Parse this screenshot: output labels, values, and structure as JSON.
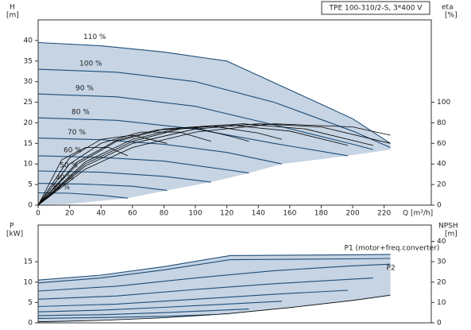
{
  "chart_data": [
    {
      "type": "line",
      "title": "TPE 100-310/2-S, 3*400 V",
      "y_label": "H",
      "y_unit": "[m]",
      "y2_label": "eta",
      "y2_unit": "[%]",
      "x_label": "Q [m³/h]",
      "xlim": [
        0,
        250
      ],
      "xticks": [
        0,
        20,
        40,
        60,
        80,
        100,
        120,
        140,
        160,
        180,
        200,
        220
      ],
      "ylim": [
        0,
        45
      ],
      "yticks": [
        0,
        5,
        10,
        15,
        20,
        25,
        30,
        35,
        40
      ],
      "y2lim": [
        0,
        180
      ],
      "y2ticks": [
        0,
        20,
        40,
        60,
        80,
        100
      ],
      "area": {
        "color": "#c6d4e3",
        "x": [
          0,
          20,
          57,
          82,
          110,
          134,
          155,
          197,
          224
        ],
        "values": [
          0,
          0.3,
          1.7,
          3.6,
          5.6,
          7.8,
          10,
          12,
          13.5
        ]
      },
      "series": [
        {
          "name": "110 %",
          "color": "#1f4e79",
          "x": [
            0,
            40,
            80,
            120,
            160,
            200,
            224
          ],
          "values": [
            39.5,
            38.7,
            37.2,
            35,
            28,
            21,
            15
          ]
        },
        {
          "name": "100 %",
          "color": "#1f4e79",
          "x": [
            0,
            50,
            100,
            150,
            200,
            224
          ],
          "values": [
            33,
            32.3,
            30,
            25,
            18,
            14
          ]
        },
        {
          "name": "90 %",
          "color": "#1f4e79",
          "x": [
            0,
            50,
            100,
            150,
            200,
            213
          ],
          "values": [
            27,
            26.3,
            24,
            19.5,
            14.8,
            13.5
          ]
        },
        {
          "name": "80 %",
          "color": "#1f4e79",
          "x": [
            0,
            50,
            100,
            150,
            197
          ],
          "values": [
            21.2,
            20.6,
            18.5,
            15,
            12
          ]
        },
        {
          "name": "70 %",
          "color": "#1f4e79",
          "x": [
            0,
            40,
            80,
            120,
            155
          ],
          "values": [
            16.3,
            15.9,
            14.8,
            12.8,
            10
          ]
        },
        {
          "name": "60 %",
          "color": "#1f4e79",
          "x": [
            0,
            40,
            80,
            120,
            134
          ],
          "values": [
            12,
            11.6,
            10.7,
            8.6,
            7.8
          ]
        },
        {
          "name": "50 %",
          "color": "#1f4e79",
          "x": [
            0,
            40,
            80,
            110
          ],
          "values": [
            8.3,
            8,
            7,
            5.6
          ]
        },
        {
          "name": "40 %",
          "color": "#1f4e79",
          "x": [
            0,
            30,
            60,
            82
          ],
          "values": [
            5.3,
            5.1,
            4.6,
            3.6
          ]
        },
        {
          "name": "30 %",
          "color": "#1f4e79",
          "x": [
            0,
            20,
            40,
            57
          ],
          "values": [
            3,
            2.9,
            2.4,
            1.7
          ]
        },
        {
          "axis": "y2",
          "color": "#000000",
          "x": [
            0,
            30,
            60,
            100,
            150,
            200,
            224
          ],
          "values": [
            0,
            35,
            56,
            71,
            79,
            76,
            68
          ]
        },
        {
          "axis": "y2",
          "color": "#000000",
          "x": [
            0,
            30,
            60,
            100,
            140,
            180,
            224
          ],
          "values": [
            0,
            38,
            60,
            74,
            79,
            76,
            60
          ]
        },
        {
          "axis": "y2",
          "color": "#000000",
          "x": [
            0,
            30,
            60,
            90,
            130,
            170,
            213
          ],
          "values": [
            0,
            40,
            62,
            74,
            79,
            74,
            58
          ]
        },
        {
          "axis": "y2",
          "color": "#000000",
          "x": [
            0,
            30,
            60,
            90,
            120,
            160,
            197
          ],
          "values": [
            0,
            42,
            64,
            75,
            78,
            72,
            58
          ]
        },
        {
          "axis": "y2",
          "color": "#000000",
          "x": [
            0,
            25,
            50,
            80,
            110,
            140,
            155
          ],
          "values": [
            0,
            40,
            62,
            74,
            77,
            70,
            64
          ]
        },
        {
          "axis": "y2",
          "color": "#000000",
          "x": [
            0,
            25,
            50,
            75,
            100,
            125,
            134
          ],
          "values": [
            0,
            42,
            63,
            73,
            75,
            66,
            62
          ]
        },
        {
          "axis": "y2",
          "color": "#000000",
          "x": [
            0,
            20,
            40,
            65,
            90,
            110
          ],
          "values": [
            0,
            40,
            60,
            71,
            71,
            62
          ]
        },
        {
          "axis": "y2",
          "color": "#000000",
          "x": [
            0,
            20,
            40,
            60,
            82
          ],
          "values": [
            0,
            46,
            64,
            68,
            60
          ]
        },
        {
          "axis": "y2",
          "color": "#000000",
          "x": [
            0,
            15,
            30,
            45,
            57
          ],
          "values": [
            0,
            44,
            56,
            56,
            48
          ]
        }
      ]
    },
    {
      "type": "line",
      "y_label": "P",
      "y_unit": "[kW]",
      "y2_label": "NPSH",
      "y2_unit": "[m]",
      "xlim": [
        0,
        250
      ],
      "ylim": [
        0,
        24
      ],
      "yticks": [
        0,
        5,
        10,
        15
      ],
      "y2lim": [
        0,
        48
      ],
      "y2ticks": [
        0,
        10,
        20,
        30,
        40
      ],
      "area": {
        "color": "#c6d4e3",
        "x": [
          0,
          60,
          120,
          180,
          224
        ],
        "values": [
          0,
          0.8,
          2,
          4.5,
          6.5
        ]
      },
      "series": [
        {
          "name": "P1 (motor+freq.converter)",
          "color": "#1f4e79",
          "x": [
            0,
            40,
            80,
            122,
            160,
            200,
            224
          ],
          "values": [
            10.5,
            11.7,
            13.8,
            16.5,
            16.6,
            16.7,
            16.8
          ]
        },
        {
          "name": "P2",
          "color": "#1f4e79",
          "x": [
            0,
            40,
            80,
            122,
            160,
            200,
            224
          ],
          "values": [
            9.8,
            11,
            13,
            15.5,
            15.6,
            15.7,
            15.8
          ]
        },
        {
          "color": "#1f4e79",
          "x": [
            0,
            50,
            100,
            150,
            200,
            224
          ],
          "values": [
            7.8,
            9,
            11,
            12.8,
            14,
            14.4
          ]
        },
        {
          "color": "#1f4e79",
          "x": [
            0,
            50,
            100,
            150,
            213
          ],
          "values": [
            5.8,
            6.6,
            8.2,
            9.6,
            11
          ]
        },
        {
          "color": "#1f4e79",
          "x": [
            0,
            50,
            100,
            150,
            197
          ],
          "values": [
            4,
            4.6,
            5.8,
            7,
            8
          ]
        },
        {
          "color": "#1f4e79",
          "x": [
            0,
            40,
            80,
            120,
            155
          ],
          "values": [
            2.7,
            3.1,
            3.8,
            4.6,
            5.3
          ]
        },
        {
          "color": "#1f4e79",
          "x": [
            0,
            40,
            80,
            134
          ],
          "values": [
            1.8,
            2,
            2.5,
            3.4
          ]
        },
        {
          "color": "#1f4e79",
          "x": [
            0,
            40,
            80,
            110
          ],
          "values": [
            1.1,
            1.3,
            1.6,
            2
          ]
        },
        {
          "axis": "y2",
          "color": "#000000",
          "x": [
            0,
            40,
            80,
            120,
            160,
            200,
            224
          ],
          "values": [
            0.5,
            1.2,
            2.5,
            4.5,
            7.5,
            11,
            13.6
          ]
        }
      ]
    }
  ]
}
